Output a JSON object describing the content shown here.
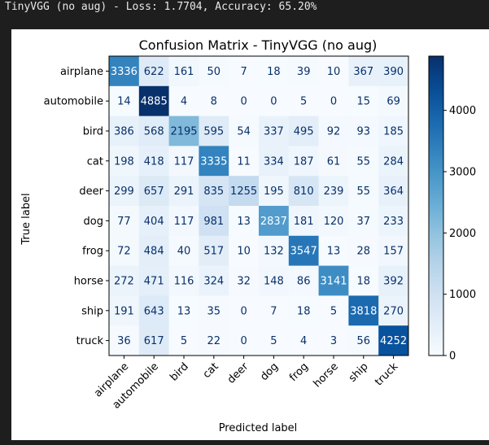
{
  "output": {
    "header_text": "TinyVGG (no aug) - Loss: 1.7704, Accuracy: 65.20%"
  },
  "chart_data": {
    "type": "heatmap",
    "title": "Confusion Matrix - TinyVGG (no aug)",
    "xlabel": "Predicted label",
    "ylabel": "True label",
    "colormap": "Blues",
    "vmin": 0,
    "vmax": 4885,
    "colorbar_ticks": [
      0,
      1000,
      2000,
      3000,
      4000
    ],
    "categories": [
      "airplane",
      "automobile",
      "bird",
      "cat",
      "deer",
      "dog",
      "frog",
      "horse",
      "ship",
      "truck"
    ],
    "matrix": [
      [
        3336,
        622,
        161,
        50,
        7,
        18,
        39,
        10,
        367,
        390
      ],
      [
        14,
        4885,
        4,
        8,
        0,
        0,
        5,
        0,
        15,
        69
      ],
      [
        386,
        568,
        2195,
        595,
        54,
        337,
        495,
        92,
        93,
        185
      ],
      [
        198,
        418,
        117,
        3335,
        11,
        334,
        187,
        61,
        55,
        284
      ],
      [
        299,
        657,
        291,
        835,
        1255,
        195,
        810,
        239,
        55,
        364
      ],
      [
        77,
        404,
        117,
        981,
        13,
        2837,
        181,
        120,
        37,
        233
      ],
      [
        72,
        484,
        40,
        517,
        10,
        132,
        3547,
        13,
        28,
        157
      ],
      [
        272,
        471,
        116,
        324,
        32,
        148,
        86,
        3141,
        18,
        392
      ],
      [
        191,
        643,
        13,
        35,
        0,
        7,
        18,
        5,
        3818,
        270
      ],
      [
        36,
        617,
        5,
        22,
        0,
        5,
        4,
        3,
        56,
        4252
      ]
    ]
  }
}
